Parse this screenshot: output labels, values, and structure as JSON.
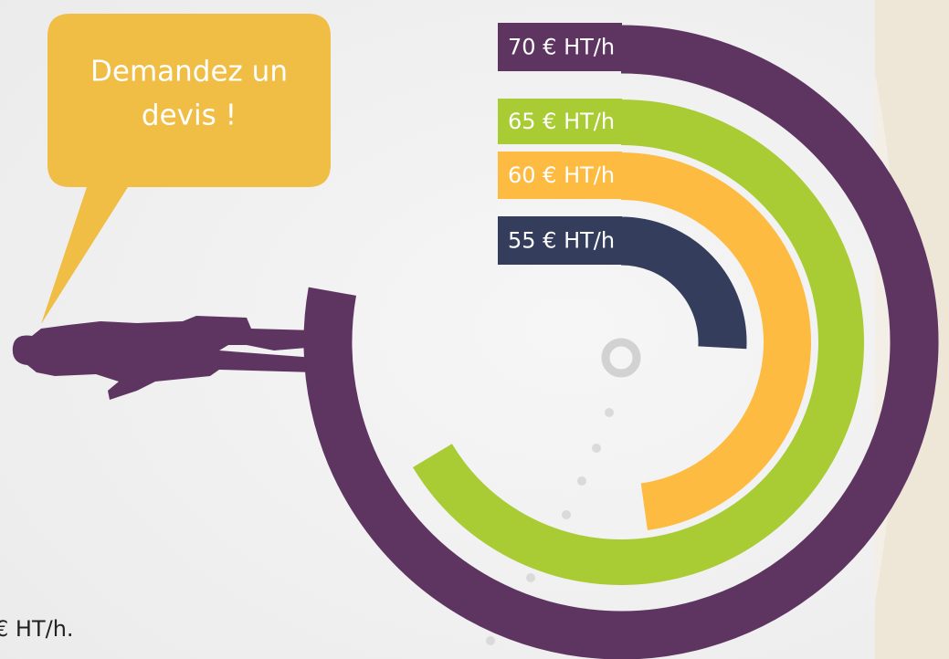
{
  "bubble": {
    "lines": [
      "Demandez un",
      "devis !"
    ]
  },
  "rates": [
    {
      "label": "70 € HT/h",
      "color": "#5e3561"
    },
    {
      "label": "65 € HT/h",
      "color": "#a9cb34"
    },
    {
      "label": "60 € HT/h",
      "color": "#fdbb42"
    },
    {
      "label": "55 € HT/h",
      "color": "#353d5d"
    }
  ],
  "footnote": "€ HT/h."
}
